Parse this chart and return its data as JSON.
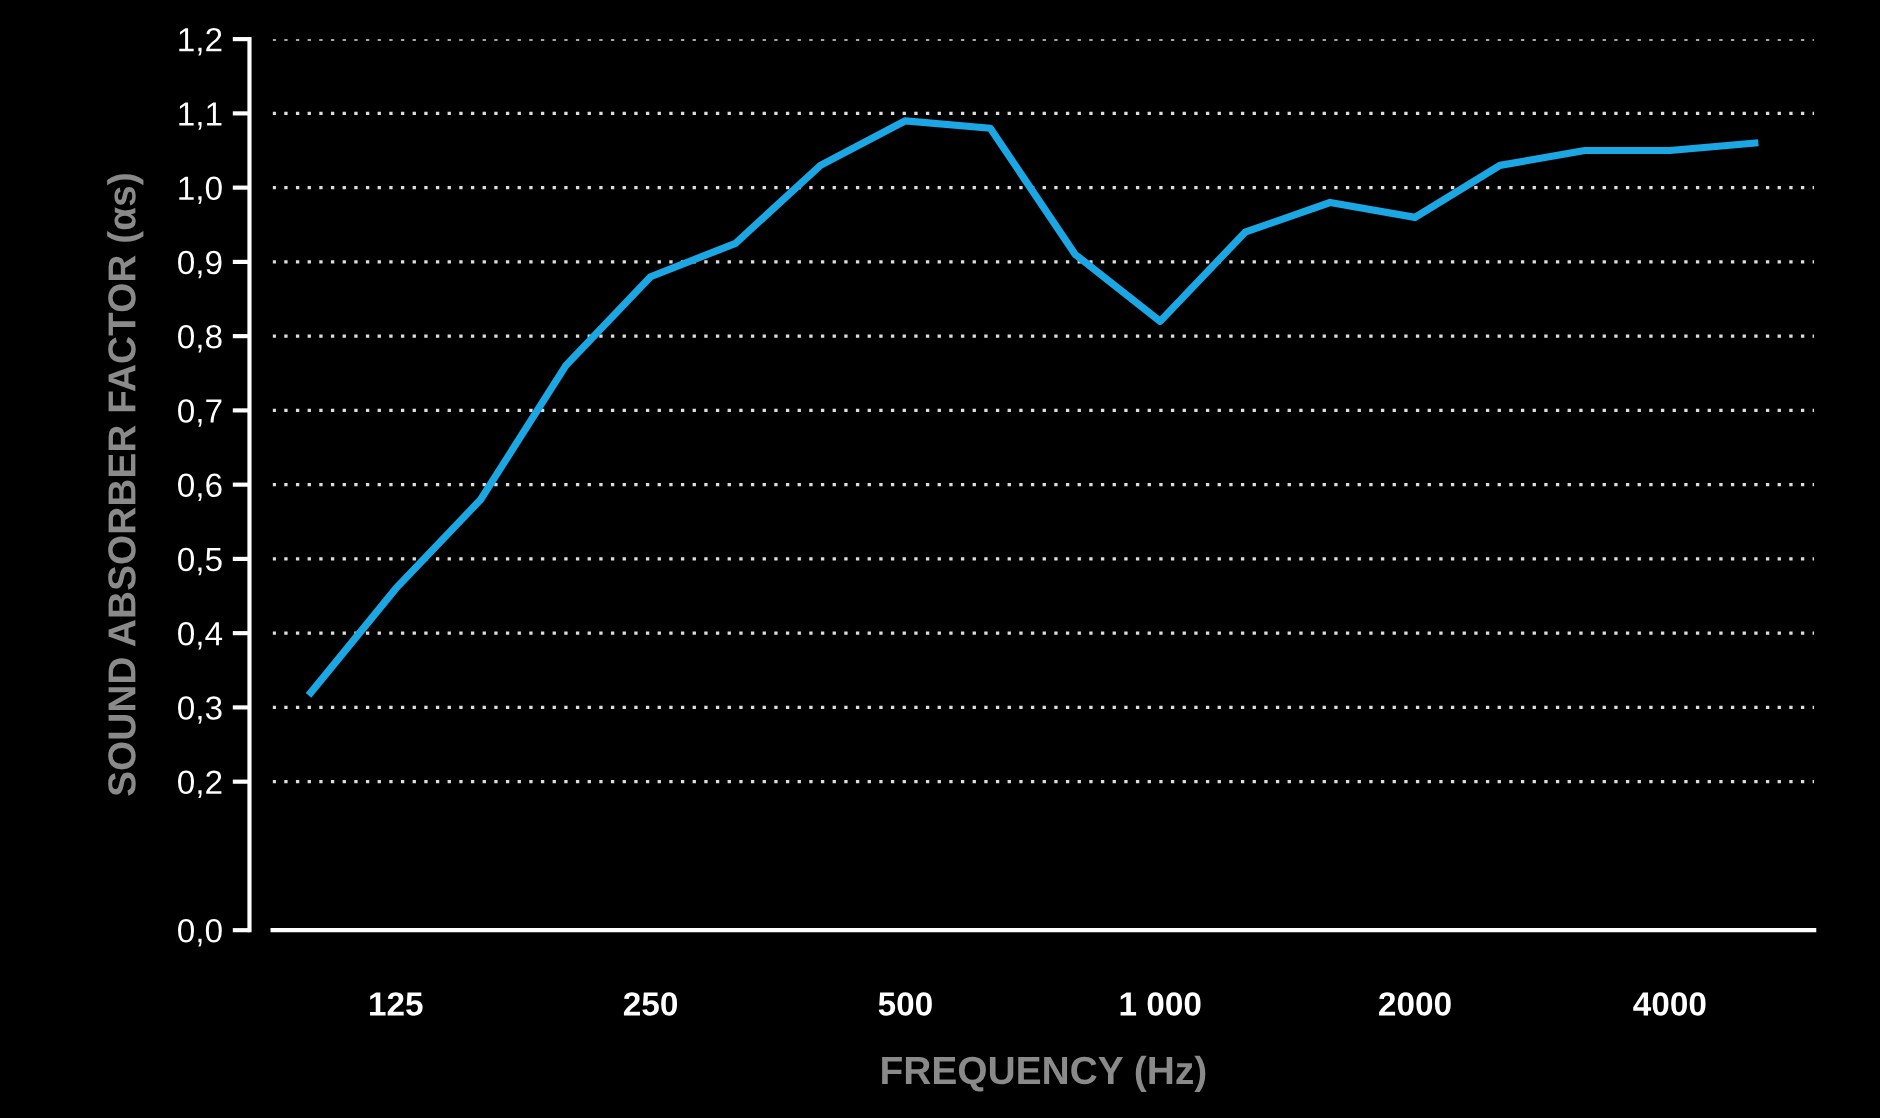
{
  "chart_data": {
    "type": "line",
    "xlabel": "FREQUENCY (Hz)",
    "ylabel": "SOUND ABSORBER FACTOR (αs)",
    "categories": [
      null,
      "125",
      null,
      null,
      "250",
      null,
      null,
      "500",
      null,
      null,
      "1 000",
      null,
      null,
      "2000",
      null,
      null,
      "4000",
      null
    ],
    "series": [
      {
        "color": "#1aa7e4",
        "values": [
          0.32,
          0.46,
          0.58,
          0.76,
          0.88,
          0.925,
          1.03,
          1.09,
          1.08,
          0.91,
          0.82,
          0.94,
          0.98,
          0.96,
          1.03,
          1.05,
          1.05,
          1.06
        ]
      }
    ],
    "ylim": [
      0.0,
      1.2
    ],
    "yticks": [
      {
        "value": 0.0,
        "label": "0,0"
      },
      {
        "value": 0.2,
        "label": "0,2"
      },
      {
        "value": 0.3,
        "label": "0,3"
      },
      {
        "value": 0.4,
        "label": "0,4"
      },
      {
        "value": 0.5,
        "label": "0,5"
      },
      {
        "value": 0.6,
        "label": "0,6"
      },
      {
        "value": 0.7,
        "label": "0,7"
      },
      {
        "value": 0.8,
        "label": "0,8"
      },
      {
        "value": 0.9,
        "label": "0,9"
      },
      {
        "value": 1.0,
        "label": "1,0"
      },
      {
        "value": 1.1,
        "label": "1,1"
      },
      {
        "value": 1.2,
        "label": "1,2"
      }
    ],
    "grid": "y",
    "marker": "none",
    "line_style": "solid",
    "legend": false
  }
}
